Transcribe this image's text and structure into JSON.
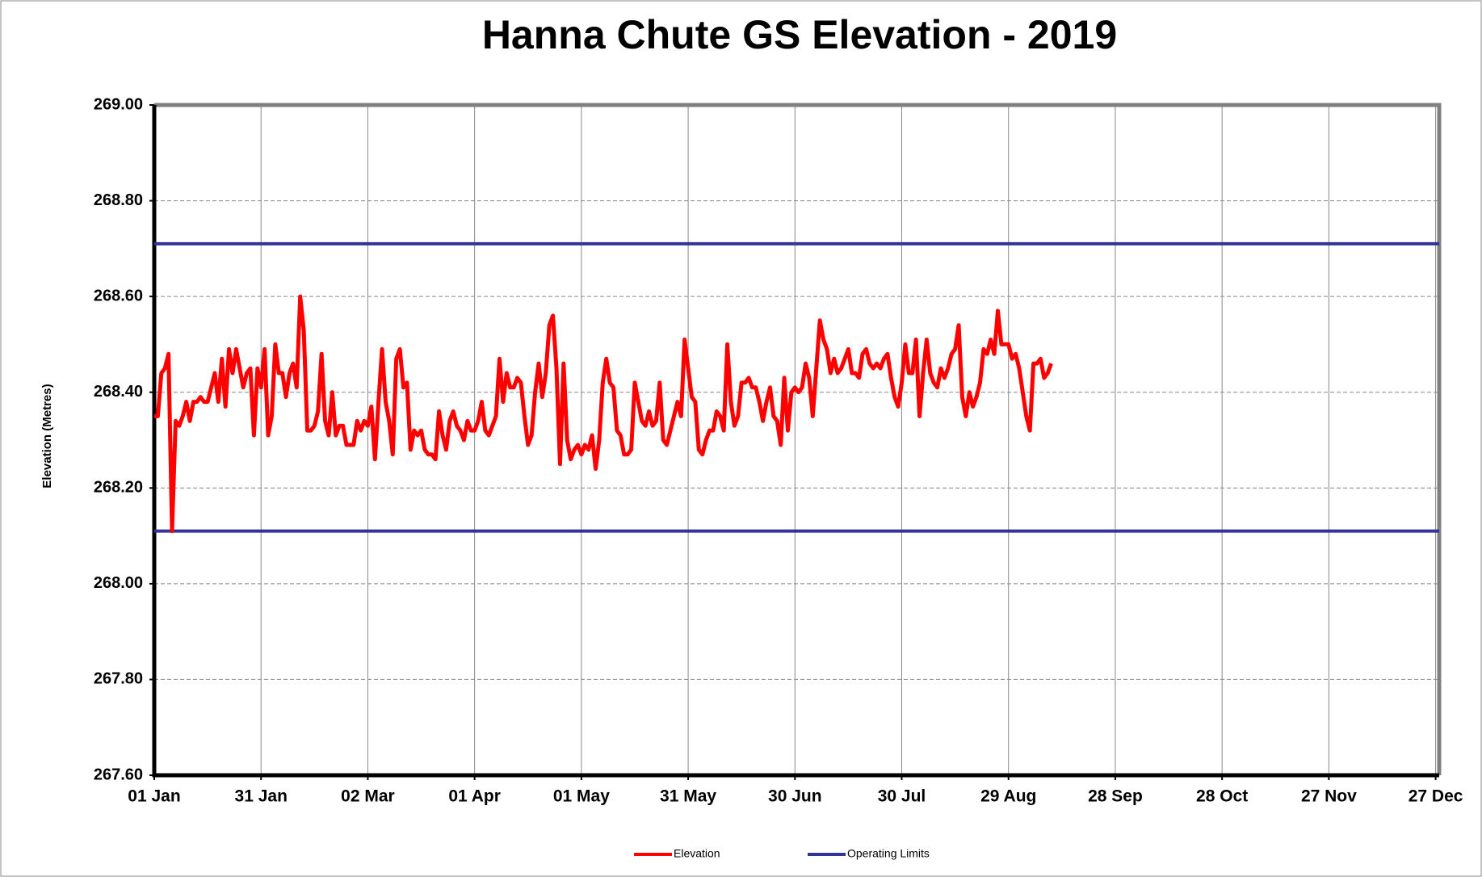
{
  "chart_data": {
    "type": "line",
    "title": "Hanna Chute GS Elevation - 2019",
    "ylabel": "Elevation (Metres)",
    "xlim": [
      0,
      361
    ],
    "xticks": [
      {
        "value": 0,
        "label": "01 Jan"
      },
      {
        "value": 30,
        "label": "31 Jan"
      },
      {
        "value": 60,
        "label": "02 Mar"
      },
      {
        "value": 90,
        "label": "01 Apr"
      },
      {
        "value": 120,
        "label": "01 May"
      },
      {
        "value": 150,
        "label": "31 May"
      },
      {
        "value": 180,
        "label": "30 Jun"
      },
      {
        "value": 210,
        "label": "30 Jul"
      },
      {
        "value": 240,
        "label": "29 Aug"
      },
      {
        "value": 270,
        "label": "28 Sep"
      },
      {
        "value": 300,
        "label": "28 Oct"
      },
      {
        "value": 330,
        "label": "27 Nov"
      },
      {
        "value": 360,
        "label": "27 Dec"
      }
    ],
    "ylim": [
      267.6,
      269.0
    ],
    "yticks": [
      {
        "value": 267.6,
        "label": "267.60"
      },
      {
        "value": 267.8,
        "label": "267.80"
      },
      {
        "value": 268.0,
        "label": "268.00"
      },
      {
        "value": 268.2,
        "label": "268.20"
      },
      {
        "value": 268.4,
        "label": "268.40"
      },
      {
        "value": 268.6,
        "label": "268.60"
      },
      {
        "value": 268.8,
        "label": "268.80"
      },
      {
        "value": 269.0,
        "label": "269.00"
      }
    ],
    "grid": true,
    "x": [
      0,
      1,
      2,
      3,
      4,
      5,
      6,
      7,
      8,
      9,
      10,
      11,
      12,
      13,
      14,
      15,
      16,
      17,
      18,
      19,
      20,
      21,
      22,
      23,
      24,
      25,
      26,
      27,
      28,
      29,
      30,
      31,
      32,
      33,
      34,
      35,
      36,
      37,
      38,
      39,
      40,
      41,
      42,
      43,
      44,
      45,
      46,
      47,
      48,
      49,
      50,
      51,
      52,
      53,
      54,
      55,
      56,
      57,
      58,
      59,
      60,
      61,
      62,
      63,
      64,
      65,
      66,
      67,
      68,
      69,
      70,
      71,
      72,
      73,
      74,
      75,
      76,
      77,
      78,
      79,
      80,
      81,
      82,
      83,
      84,
      85,
      86,
      87,
      88,
      89,
      90,
      91,
      92,
      93,
      94,
      95,
      96,
      97,
      98,
      99,
      100,
      101,
      102,
      103,
      104,
      105,
      106,
      107,
      108,
      109,
      110,
      111,
      112,
      113,
      114,
      115,
      116,
      117,
      118,
      119,
      120,
      121,
      122,
      123,
      124,
      125,
      126,
      127,
      128,
      129,
      130,
      131,
      132,
      133,
      134,
      135,
      136,
      137,
      138,
      139,
      140,
      141,
      142,
      143,
      144,
      145,
      146,
      147,
      148,
      149,
      150,
      151,
      152,
      153,
      154,
      155,
      156,
      157,
      158,
      159,
      160,
      161,
      162,
      163,
      164,
      165,
      166,
      167,
      168,
      169,
      170,
      171,
      172,
      173,
      174,
      175,
      176,
      177,
      178,
      179,
      180,
      181,
      182,
      183,
      184,
      185,
      186,
      187,
      188,
      189,
      190,
      191,
      192,
      193,
      194,
      195,
      196,
      197,
      198,
      199,
      200,
      201,
      202,
      203,
      204,
      205,
      206,
      207,
      208,
      209,
      210,
      211,
      212,
      213,
      214,
      215,
      216,
      217,
      218,
      219,
      220,
      221,
      222,
      223,
      224,
      225,
      226,
      227,
      228,
      229,
      230,
      231,
      232,
      233,
      234,
      235,
      236,
      237,
      238,
      239,
      240,
      241,
      242,
      243,
      244,
      245,
      246,
      247,
      248,
      249,
      250,
      251,
      252
    ],
    "series": [
      {
        "name": "Elevation",
        "color": "#ff0000",
        "values": [
          268.35,
          268.35,
          268.44,
          268.45,
          268.48,
          268.11,
          268.34,
          268.33,
          268.35,
          268.38,
          268.34,
          268.38,
          268.38,
          268.39,
          268.38,
          268.38,
          268.41,
          268.44,
          268.38,
          268.47,
          268.37,
          268.49,
          268.44,
          268.49,
          268.45,
          268.41,
          268.44,
          268.45,
          268.31,
          268.45,
          268.41,
          268.49,
          268.31,
          268.35,
          268.5,
          268.44,
          268.44,
          268.39,
          268.44,
          268.46,
          268.41,
          268.6,
          268.53,
          268.32,
          268.32,
          268.33,
          268.36,
          268.48,
          268.34,
          268.31,
          268.4,
          268.31,
          268.33,
          268.33,
          268.29,
          268.29,
          268.29,
          268.34,
          268.32,
          268.34,
          268.33,
          268.37,
          268.26,
          268.38,
          268.49,
          268.38,
          268.34,
          268.27,
          268.47,
          268.49,
          268.41,
          268.42,
          268.28,
          268.32,
          268.31,
          268.32,
          268.28,
          268.27,
          268.27,
          268.26,
          268.36,
          268.31,
          268.28,
          268.34,
          268.36,
          268.33,
          268.32,
          268.3,
          268.34,
          268.32,
          268.32,
          268.34,
          268.38,
          268.32,
          268.31,
          268.33,
          268.35,
          268.47,
          268.38,
          268.44,
          268.41,
          268.41,
          268.43,
          268.42,
          268.35,
          268.29,
          268.31,
          268.4,
          268.46,
          268.39,
          268.44,
          268.54,
          268.56,
          268.45,
          268.25,
          268.46,
          268.3,
          268.26,
          268.28,
          268.29,
          268.27,
          268.29,
          268.28,
          268.31,
          268.24,
          268.3,
          268.42,
          268.47,
          268.42,
          268.41,
          268.32,
          268.31,
          268.27,
          268.27,
          268.28,
          268.42,
          268.38,
          268.34,
          268.33,
          268.36,
          268.33,
          268.34,
          268.42,
          268.3,
          268.29,
          268.32,
          268.35,
          268.38,
          268.35,
          268.51,
          268.45,
          268.39,
          268.38,
          268.28,
          268.27,
          268.3,
          268.32,
          268.32,
          268.36,
          268.35,
          268.32,
          268.5,
          268.38,
          268.33,
          268.35,
          268.42,
          268.42,
          268.43,
          268.41,
          268.41,
          268.38,
          268.34,
          268.38,
          268.41,
          268.35,
          268.34,
          268.29,
          268.43,
          268.32,
          268.4,
          268.41,
          268.4,
          268.41,
          268.46,
          268.43,
          268.35,
          268.45,
          268.55,
          268.51,
          268.49,
          268.44,
          268.47,
          268.44,
          268.45,
          268.47,
          268.49,
          268.44,
          268.44,
          268.43,
          268.48,
          268.49,
          268.46,
          268.45,
          268.46,
          268.45,
          268.47,
          268.48,
          268.43,
          268.39,
          268.37,
          268.42,
          268.5,
          268.44,
          268.44,
          268.51,
          268.35,
          268.44,
          268.51,
          268.44,
          268.42,
          268.41,
          268.45,
          268.43,
          268.45,
          268.48,
          268.49,
          268.54,
          268.39,
          268.35,
          268.4,
          268.37,
          268.39,
          268.42,
          268.49,
          268.48,
          268.51,
          268.48,
          268.57,
          268.5,
          268.5,
          268.5,
          268.47,
          268.48,
          268.45,
          268.4,
          268.35,
          268.32,
          268.46,
          268.46,
          268.47,
          268.43,
          268.44,
          268.46
        ]
      }
    ],
    "limits": {
      "name": "Operating Limits",
      "color": "#333399",
      "values": [
        268.71,
        268.11
      ]
    }
  }
}
